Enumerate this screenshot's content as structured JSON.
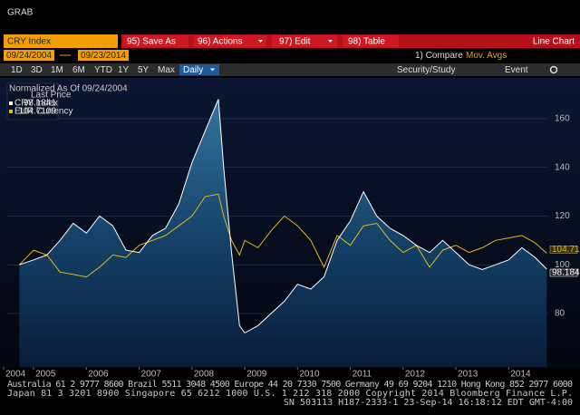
{
  "window": {
    "title": "GRAB"
  },
  "toolbar": {
    "security": "CRY Index",
    "buttons": [
      "95) Save As",
      "96) Actions",
      "97) Edit",
      "98) Table"
    ],
    "view": "Line Chart"
  },
  "dates": {
    "start": "09/24/2004",
    "end": "09/23/2014"
  },
  "compare": "1) Compare",
  "mov_avgs": "Mov. Avgs",
  "periods": [
    "1D",
    "3D",
    "1M",
    "6M",
    "YTD",
    "1Y",
    "5Y",
    "Max"
  ],
  "frequency": "Daily",
  "tools": [
    "Security/Study",
    "Event"
  ],
  "footer": [
    "Australia 61 2 9777 8600 Brazil 5511 3048 4500 Europe 44 20 7330 7500 Germany 49 69 9204 1210 Hong Kong 852 2977 6000",
    "Japan 81 3 3201 8900        Singapore 65 6212 1000        U.S. 1 212 318 2000          Copyright 2014 Bloomberg Finance L.P.",
    "SN 503113 H187-2333-1 23-Sep-14 16:18:12 EDT  GMT-4:00"
  ],
  "chart_data": {
    "type": "line",
    "legend_title": "Normalized As Of 09/24/2004",
    "legend_subtitle": "Last Price",
    "x": [
      2004.73,
      2005.0,
      2005.25,
      2005.5,
      2005.75,
      2006.0,
      2006.25,
      2006.5,
      2006.75,
      2007.0,
      2007.25,
      2007.5,
      2007.75,
      2008.0,
      2008.25,
      2008.5,
      2008.6,
      2008.75,
      2008.9,
      2009.0,
      2009.25,
      2009.5,
      2009.75,
      2010.0,
      2010.25,
      2010.5,
      2010.75,
      2011.0,
      2011.25,
      2011.5,
      2011.75,
      2012.0,
      2012.25,
      2012.5,
      2012.75,
      2013.0,
      2013.25,
      2013.5,
      2013.75,
      2014.0,
      2014.25,
      2014.5,
      2014.72
    ],
    "series": [
      {
        "name": "CRY Index",
        "color": "#ffffff",
        "values": [
          100,
          102,
          104,
          110,
          117,
          113,
          120,
          116,
          106,
          105,
          112,
          115,
          125,
          142,
          155,
          168,
          140,
          105,
          75,
          72,
          75,
          80,
          85,
          92,
          90,
          95,
          110,
          118,
          130,
          120,
          115,
          112,
          108,
          105,
          110,
          105,
          100,
          98,
          100,
          102,
          107,
          103,
          98.1841
        ]
      },
      {
        "name": "EUR Currency",
        "color": "#e8b818",
        "values": [
          100,
          106,
          104,
          97,
          96,
          95,
          99,
          104,
          103,
          108,
          110,
          112,
          116,
          120,
          128,
          129,
          120,
          110,
          104,
          110,
          107,
          114,
          120,
          116,
          110,
          99,
          112,
          108,
          116,
          117,
          110,
          105,
          108,
          99,
          106,
          108,
          105,
          107,
          110,
          111,
          112,
          109,
          104.7109
        ]
      }
    ],
    "xlim": [
      2004.5,
      2014.75
    ],
    "xticks": [
      2004,
      2005,
      2006,
      2007,
      2008,
      2009,
      2010,
      2011,
      2012,
      2013,
      2014
    ],
    "ylim": [
      58,
      176
    ],
    "yticks": [
      80,
      100,
      120,
      140,
      160
    ],
    "grid": true
  }
}
